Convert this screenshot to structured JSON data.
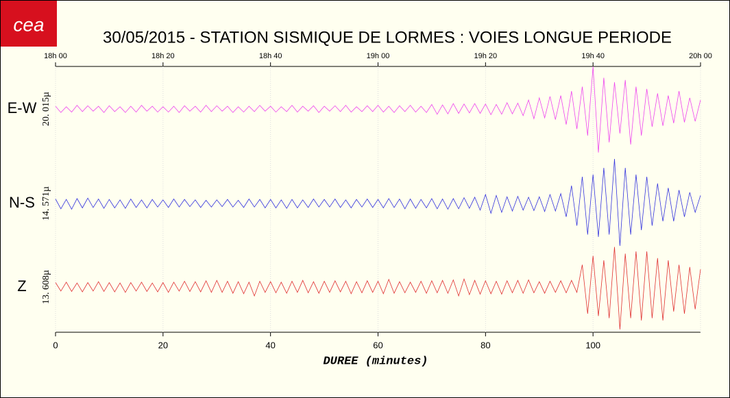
{
  "chart_data": {
    "type": "line",
    "logo": "cea",
    "title": "30/05/2015  -  STATION SISMIQUE DE LORMES : VOIES LONGUE PERIODE",
    "x_label": "DUREE (minutes)",
    "xlim": [
      0,
      120
    ],
    "xticks": [
      0,
      20,
      40,
      60,
      80,
      100
    ],
    "top_xticks": [
      {
        "value": 0,
        "label": "18h 00"
      },
      {
        "value": 20,
        "label": "18h 20"
      },
      {
        "value": 40,
        "label": "18h 40"
      },
      {
        "value": 60,
        "label": "19h 00"
      },
      {
        "value": 80,
        "label": "19h 20"
      },
      {
        "value": 100,
        "label": "19h 40"
      },
      {
        "value": 120,
        "label": "20h 00"
      }
    ],
    "ylim": [
      -1,
      1
    ],
    "grid": true,
    "x": [
      0,
      1,
      2,
      3,
      4,
      5,
      6,
      7,
      8,
      9,
      10,
      11,
      12,
      13,
      14,
      15,
      16,
      17,
      18,
      19,
      20,
      21,
      22,
      23,
      24,
      25,
      26,
      27,
      28,
      29,
      30,
      31,
      32,
      33,
      34,
      35,
      36,
      37,
      38,
      39,
      40,
      41,
      42,
      43,
      44,
      45,
      46,
      47,
      48,
      49,
      50,
      51,
      52,
      53,
      54,
      55,
      56,
      57,
      58,
      59,
      60,
      61,
      62,
      63,
      64,
      65,
      66,
      67,
      68,
      69,
      70,
      71,
      72,
      73,
      74,
      75,
      76,
      77,
      78,
      79,
      80,
      81,
      82,
      83,
      84,
      85,
      86,
      87,
      88,
      89,
      90,
      91,
      92,
      93,
      94,
      95,
      96,
      97,
      98,
      99,
      100,
      101,
      102,
      103,
      104,
      105,
      106,
      107,
      108,
      109,
      110,
      111,
      112,
      113,
      114,
      115,
      116,
      117,
      118,
      119,
      120
    ],
    "series": [
      {
        "name": "E-W",
        "scale_label": "20. 015µ",
        "color": "#ee44ee",
        "values": [
          0.06,
          -0.08,
          0.05,
          -0.07,
          0.08,
          -0.06,
          0.07,
          -0.05,
          0.06,
          -0.08,
          0.07,
          -0.06,
          0.05,
          -0.08,
          0.06,
          -0.07,
          0.08,
          -0.05,
          0.06,
          -0.07,
          0.05,
          -0.07,
          0.06,
          -0.08,
          0.07,
          -0.05,
          0.06,
          -0.07,
          0.08,
          -0.06,
          0.07,
          -0.05,
          0.06,
          -0.08,
          0.05,
          -0.07,
          0.06,
          -0.06,
          0.08,
          -0.05,
          0.06,
          -0.07,
          0.05,
          -0.06,
          0.08,
          -0.07,
          0.06,
          -0.05,
          0.07,
          -0.08,
          0.06,
          -0.05,
          0.07,
          -0.06,
          0.08,
          -0.07,
          0.05,
          -0.06,
          0.07,
          -0.06,
          0.08,
          -0.07,
          0.06,
          -0.08,
          0.07,
          -0.06,
          0.08,
          -0.07,
          0.06,
          -0.08,
          0.1,
          -0.12,
          0.09,
          -0.11,
          0.12,
          -0.1,
          0.11,
          -0.09,
          0.12,
          -0.1,
          0.11,
          -0.13,
          0.1,
          -0.12,
          0.14,
          -0.11,
          0.13,
          -0.15,
          0.2,
          -0.22,
          0.25,
          -0.2,
          0.28,
          -0.24,
          0.3,
          -0.35,
          0.4,
          -0.45,
          0.5,
          -0.6,
          0.95,
          -0.98,
          0.7,
          -0.75,
          0.6,
          -0.55,
          0.65,
          -0.8,
          0.5,
          -0.6,
          0.45,
          -0.4,
          0.35,
          -0.38,
          0.3,
          -0.32,
          0.4,
          -0.3,
          0.25,
          -0.28,
          0.2
        ]
      },
      {
        "name": "N-S",
        "scale_label": "14. 571µ",
        "color": "#3333dd",
        "values": [
          0.1,
          -0.12,
          0.09,
          -0.13,
          0.11,
          -0.1,
          0.12,
          -0.09,
          0.1,
          -0.11,
          0.09,
          -0.1,
          0.08,
          -0.11,
          0.1,
          -0.09,
          0.08,
          -0.1,
          0.09,
          -0.08,
          0.08,
          -0.09,
          0.1,
          -0.08,
          0.09,
          -0.07,
          0.08,
          -0.09,
          0.07,
          -0.08,
          0.08,
          -0.07,
          0.09,
          -0.08,
          0.07,
          -0.09,
          0.1,
          -0.08,
          0.09,
          -0.1,
          0.09,
          -0.1,
          0.08,
          -0.11,
          0.09,
          -0.1,
          0.08,
          -0.09,
          0.1,
          -0.08,
          0.09,
          -0.08,
          0.1,
          -0.09,
          0.08,
          -0.1,
          0.09,
          -0.08,
          0.1,
          -0.09,
          0.09,
          -0.1,
          0.11,
          -0.09,
          0.1,
          -0.12,
          0.1,
          -0.11,
          0.09,
          -0.1,
          0.11,
          -0.12,
          0.1,
          -0.13,
          0.11,
          -0.12,
          0.13,
          -0.11,
          0.14,
          -0.15,
          0.2,
          -0.22,
          0.18,
          -0.2,
          0.15,
          -0.17,
          0.16,
          -0.15,
          0.14,
          -0.16,
          0.15,
          -0.18,
          0.2,
          -0.17,
          0.22,
          -0.3,
          0.4,
          -0.5,
          0.6,
          -0.7,
          0.65,
          -0.75,
          0.8,
          -0.7,
          1.0,
          -0.95,
          0.8,
          -0.7,
          0.65,
          -0.6,
          0.6,
          -0.5,
          0.45,
          -0.4,
          0.35,
          -0.4,
          0.3,
          -0.3,
          0.25,
          -0.2,
          0.18
        ]
      },
      {
        "name": "Z",
        "scale_label": "13. 608µ",
        "color": "#e03030",
        "values": [
          0.1,
          -0.09,
          0.11,
          -0.1,
          0.09,
          -0.11,
          0.1,
          -0.09,
          0.12,
          -0.1,
          0.1,
          -0.11,
          0.09,
          -0.12,
          0.1,
          -0.09,
          0.11,
          -0.1,
          0.09,
          -0.11,
          0.1,
          -0.12,
          0.11,
          -0.09,
          0.13,
          -0.1,
          0.12,
          -0.11,
          0.14,
          -0.12,
          0.15,
          -0.12,
          0.13,
          -0.14,
          0.12,
          -0.15,
          0.11,
          -0.2,
          0.13,
          -0.12,
          0.12,
          -0.13,
          0.11,
          -0.14,
          0.13,
          -0.12,
          0.15,
          -0.13,
          0.12,
          -0.14,
          0.13,
          -0.12,
          0.14,
          -0.11,
          0.13,
          -0.15,
          0.12,
          -0.13,
          0.14,
          -0.12,
          0.13,
          -0.15,
          0.17,
          -0.14,
          0.12,
          -0.13,
          0.11,
          -0.12,
          0.13,
          -0.14,
          0.14,
          -0.13,
          0.15,
          -0.14,
          0.16,
          -0.2,
          0.18,
          -0.17,
          0.15,
          -0.16,
          0.14,
          -0.15,
          0.13,
          -0.16,
          0.14,
          -0.13,
          0.15,
          -0.14,
          0.16,
          -0.13,
          0.12,
          -0.14,
          0.13,
          -0.12,
          0.14,
          -0.13,
          0.15,
          -0.12,
          0.5,
          -0.6,
          0.7,
          -0.65,
          0.6,
          -0.7,
          0.9,
          -0.95,
          0.75,
          -0.7,
          0.8,
          -0.75,
          0.8,
          -0.7,
          0.65,
          -0.75,
          0.6,
          -0.55,
          0.5,
          -0.6,
          0.45,
          -0.5,
          0.4
        ]
      }
    ]
  }
}
